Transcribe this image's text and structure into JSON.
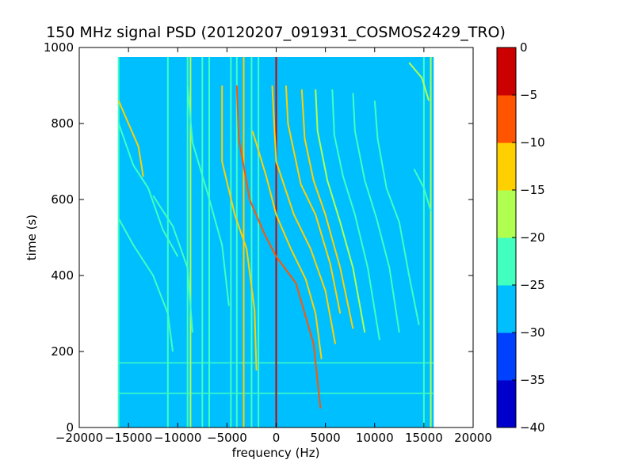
{
  "chart_data": {
    "type": "heatmap",
    "title": "150 MHz signal PSD (20120207_091931_COSMOS2429_TRO)",
    "xlabel": "frequency (Hz)",
    "ylabel": "time (s)",
    "xlim": [
      -20000,
      20000
    ],
    "ylim": [
      0,
      1000
    ],
    "xticks": [
      -20000,
      -15000,
      -10000,
      -5000,
      0,
      5000,
      10000,
      15000,
      20000
    ],
    "xtick_labels": [
      "−20000",
      "−15000",
      "−10000",
      "−5000",
      "0",
      "5000",
      "10000",
      "15000",
      "20000"
    ],
    "yticks": [
      0,
      200,
      400,
      600,
      800,
      1000
    ],
    "ytick_labels": [
      "0",
      "200",
      "400",
      "600",
      "800",
      "1000"
    ],
    "data_extent": {
      "x": [
        -16000,
        16000
      ],
      "y": [
        0,
        975
      ]
    },
    "background_level": -28,
    "colorbar": {
      "range": [
        -40,
        0
      ],
      "levels": [
        -40,
        -35,
        -30,
        -25,
        -20,
        -15,
        -10,
        -5,
        0
      ],
      "tick_labels": [
        "−40",
        "−35",
        "−30",
        "−25",
        "−20",
        "−15",
        "−10",
        "−5",
        "0"
      ],
      "colors": [
        "#0000cd",
        "#0040ff",
        "#00bfff",
        "#40ffbf",
        "#b0ff50",
        "#ffd000",
        "#ff5500",
        "#cd0000"
      ]
    },
    "vertical_lines": [
      {
        "x": -16000,
        "level": -23
      },
      {
        "x": -11000,
        "level": -22
      },
      {
        "x": -9000,
        "level": -22
      },
      {
        "x": -8700,
        "level": -20
      },
      {
        "x": -7500,
        "level": -22
      },
      {
        "x": -6800,
        "level": -25
      },
      {
        "x": -4600,
        "level": -22
      },
      {
        "x": -4000,
        "level": -22
      },
      {
        "x": -3300,
        "level": -15
      },
      {
        "x": -2500,
        "level": -22
      },
      {
        "x": -1800,
        "level": -24
      },
      {
        "x": 0,
        "level": -3
      },
      {
        "x": 15000,
        "level": -22
      },
      {
        "x": 15700,
        "level": -20
      }
    ],
    "horizontal_lines": [
      {
        "y": 170,
        "level": -22
      },
      {
        "y": 90,
        "level": -22
      }
    ],
    "doppler_curves": [
      {
        "points": [
          [
            -16000,
            860
          ],
          [
            -15000,
            800
          ],
          [
            -14000,
            740
          ],
          [
            -13500,
            660
          ]
        ],
        "level": -15
      },
      {
        "points": [
          [
            -16000,
            800
          ],
          [
            -14500,
            690
          ],
          [
            -13000,
            630
          ],
          [
            -11500,
            520
          ],
          [
            -10000,
            450
          ]
        ],
        "level": -22
      },
      {
        "points": [
          [
            -16000,
            550
          ],
          [
            -14500,
            480
          ],
          [
            -12500,
            400
          ],
          [
            -11000,
            300
          ],
          [
            -10500,
            200
          ]
        ],
        "level": -22
      },
      {
        "points": [
          [
            -12500,
            610
          ],
          [
            -10500,
            530
          ],
          [
            -9000,
            420
          ],
          [
            -8500,
            250
          ]
        ],
        "level": -22
      },
      {
        "points": [
          [
            -9000,
            900
          ],
          [
            -8500,
            750
          ],
          [
            -7000,
            620
          ],
          [
            -5500,
            480
          ],
          [
            -4800,
            320
          ]
        ],
        "level": -22
      },
      {
        "points": [
          [
            -5500,
            900
          ],
          [
            -5500,
            700
          ],
          [
            -4200,
            560
          ],
          [
            -3000,
            470
          ],
          [
            -2200,
            310
          ],
          [
            -2000,
            150
          ]
        ],
        "level": -15
      },
      {
        "points": [
          [
            -4000,
            900
          ],
          [
            -3800,
            760
          ],
          [
            -2700,
            600
          ],
          [
            -1200,
            510
          ],
          [
            0,
            450
          ],
          [
            2000,
            380
          ],
          [
            3800,
            220
          ],
          [
            4500,
            50
          ]
        ],
        "level": -8
      },
      {
        "points": [
          [
            -2400,
            780
          ],
          [
            -1000,
            660
          ],
          [
            0,
            560
          ],
          [
            1500,
            470
          ],
          [
            3000,
            390
          ],
          [
            4000,
            300
          ],
          [
            4600,
            180
          ]
        ],
        "level": -15
      },
      {
        "points": [
          [
            -400,
            900
          ],
          [
            0,
            700
          ],
          [
            1800,
            560
          ],
          [
            3500,
            470
          ],
          [
            5000,
            360
          ],
          [
            6000,
            220
          ]
        ],
        "level": -15
      },
      {
        "points": [
          [
            1000,
            900
          ],
          [
            1200,
            800
          ],
          [
            2500,
            640
          ],
          [
            4000,
            560
          ],
          [
            5500,
            430
          ],
          [
            6500,
            300
          ]
        ],
        "level": -12
      },
      {
        "points": [
          [
            2600,
            890
          ],
          [
            2900,
            760
          ],
          [
            3800,
            650
          ],
          [
            5000,
            560
          ],
          [
            6500,
            420
          ],
          [
            7800,
            260
          ]
        ],
        "level": -15
      },
      {
        "points": [
          [
            4000,
            890
          ],
          [
            4200,
            780
          ],
          [
            5200,
            650
          ],
          [
            6500,
            540
          ],
          [
            7800,
            420
          ],
          [
            9000,
            250
          ]
        ],
        "level": -18
      },
      {
        "points": [
          [
            5700,
            890
          ],
          [
            5900,
            770
          ],
          [
            6800,
            660
          ],
          [
            8000,
            560
          ],
          [
            9300,
            420
          ],
          [
            10500,
            230
          ]
        ],
        "level": -22
      },
      {
        "points": [
          [
            7800,
            880
          ],
          [
            8000,
            780
          ],
          [
            9000,
            650
          ],
          [
            10200,
            550
          ],
          [
            11500,
            420
          ],
          [
            12500,
            250
          ]
        ],
        "level": -22
      },
      {
        "points": [
          [
            10000,
            860
          ],
          [
            10300,
            760
          ],
          [
            11200,
            630
          ],
          [
            12500,
            540
          ],
          [
            13500,
            400
          ],
          [
            14500,
            270
          ]
        ],
        "level": -22
      },
      {
        "points": [
          [
            13500,
            960
          ],
          [
            14800,
            920
          ],
          [
            15500,
            860
          ]
        ],
        "level": -18
      },
      {
        "points": [
          [
            14000,
            680
          ],
          [
            15000,
            630
          ],
          [
            15700,
            570
          ]
        ],
        "level": -22
      }
    ]
  }
}
